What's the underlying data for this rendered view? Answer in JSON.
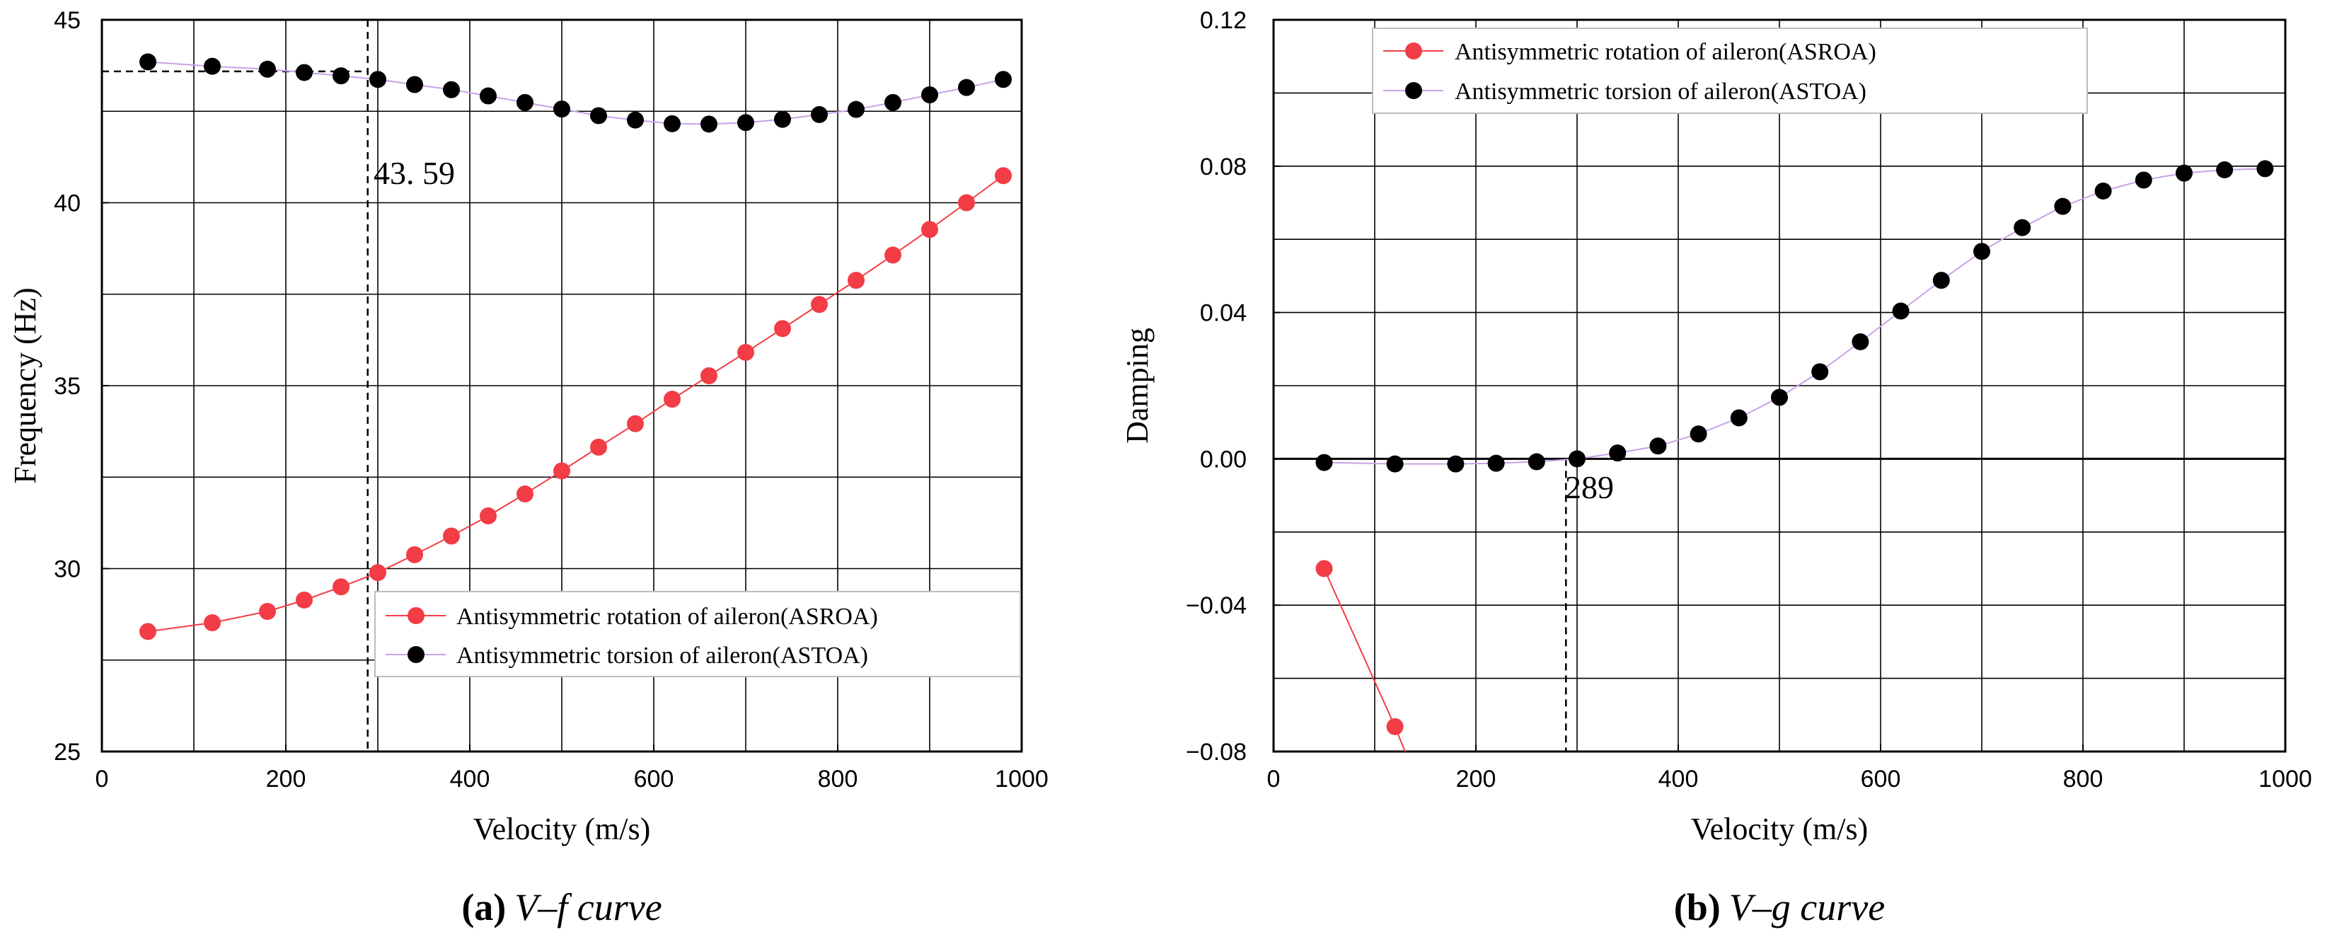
{
  "colors": {
    "asroa": "#f23c46",
    "astoa": "#000000",
    "astoa_line": "#c9a2e6",
    "grid": "#000000"
  },
  "chart_data": [
    {
      "type": "line",
      "id": "vf",
      "title": "",
      "caption": {
        "label": "(a)",
        "rest": "V–f curve"
      },
      "xlabel": "Velocity (m/s)",
      "ylabel": "Frequency (Hz)",
      "xlim": [
        0,
        1000
      ],
      "ylim": [
        25,
        45
      ],
      "xticks": [
        0,
        200,
        400,
        600,
        800,
        1000
      ],
      "xtick_labels": [
        "0",
        "200",
        "400",
        "600",
        "800",
        "1000"
      ],
      "yticks": [
        25,
        30,
        35,
        40,
        45
      ],
      "ytick_labels": [
        "25",
        "30",
        "35",
        "40",
        "45"
      ],
      "grid": true,
      "legend_position": "bottom-right",
      "series": [
        {
          "name": "Antisymmetric rotation of aileron(ASROA)",
          "color_key": "asroa",
          "x": [
            50,
            120,
            180,
            220,
            260,
            300,
            340,
            380,
            420,
            460,
            500,
            540,
            580,
            620,
            660,
            700,
            740,
            780,
            820,
            860,
            900,
            940,
            980
          ],
          "y": [
            28.28,
            28.52,
            28.83,
            29.14,
            29.5,
            29.89,
            30.38,
            30.89,
            31.44,
            32.04,
            32.67,
            33.32,
            33.96,
            34.63,
            35.27,
            35.91,
            36.56,
            37.22,
            37.88,
            38.57,
            39.27,
            40.0,
            40.74
          ]
        },
        {
          "name": "Antisymmetric torsion of aileron(ASTOA)",
          "color_key": "astoa",
          "x": [
            50,
            120,
            180,
            220,
            260,
            300,
            340,
            380,
            420,
            460,
            500,
            540,
            580,
            620,
            660,
            700,
            740,
            780,
            820,
            860,
            900,
            940,
            980
          ],
          "y": [
            43.85,
            43.73,
            43.65,
            43.56,
            43.47,
            43.37,
            43.23,
            43.09,
            42.92,
            42.74,
            42.56,
            42.38,
            42.26,
            42.16,
            42.15,
            42.19,
            42.28,
            42.41,
            42.55,
            42.74,
            42.95,
            43.15,
            43.37
          ]
        }
      ],
      "reference": {
        "x": 289,
        "y": 43.59,
        "label": "43. 59"
      }
    },
    {
      "type": "line",
      "id": "vg",
      "title": "",
      "caption": {
        "label": "(b)",
        "rest": "V–g curve"
      },
      "xlabel": "Velocity (m/s)",
      "ylabel": "Damping",
      "xlim": [
        0,
        1000
      ],
      "ylim": [
        -0.08,
        0.12
      ],
      "xticks": [
        0,
        200,
        400,
        600,
        800,
        1000
      ],
      "xtick_labels": [
        "0",
        "200",
        "400",
        "600",
        "800",
        "1000"
      ],
      "yticks": [
        -0.08,
        -0.04,
        0.0,
        0.04,
        0.08,
        0.12
      ],
      "ytick_labels": [
        "−0.08",
        "−0.04",
        "0.00",
        "0.04",
        "0.08",
        "0.12"
      ],
      "grid": true,
      "legend_position": "top-left",
      "series": [
        {
          "name": "Antisymmetric rotation of aileron(ASROA)",
          "color_key": "asroa",
          "x": [
            50,
            120,
            130
          ],
          "y": [
            -0.03,
            -0.0732,
            -0.08
          ],
          "markers": [
            true,
            true,
            false
          ]
        },
        {
          "name": "Antisymmetric torsion of aileron(ASTOA)",
          "color_key": "astoa",
          "x": [
            50,
            120,
            180,
            220,
            260,
            300,
            340,
            380,
            420,
            460,
            500,
            540,
            580,
            620,
            660,
            700,
            740,
            780,
            820,
            860,
            900,
            940,
            980
          ],
          "y": [
            -0.001,
            -0.0014,
            -0.0014,
            -0.0012,
            -0.0008,
            0.0,
            0.0016,
            0.0035,
            0.0068,
            0.0112,
            0.0168,
            0.0238,
            0.032,
            0.0404,
            0.0488,
            0.0567,
            0.0632,
            0.069,
            0.0732,
            0.0762,
            0.0781,
            0.079,
            0.0793
          ]
        }
      ],
      "reference": {
        "x": 289,
        "y": 0.0,
        "label": "289"
      }
    }
  ]
}
